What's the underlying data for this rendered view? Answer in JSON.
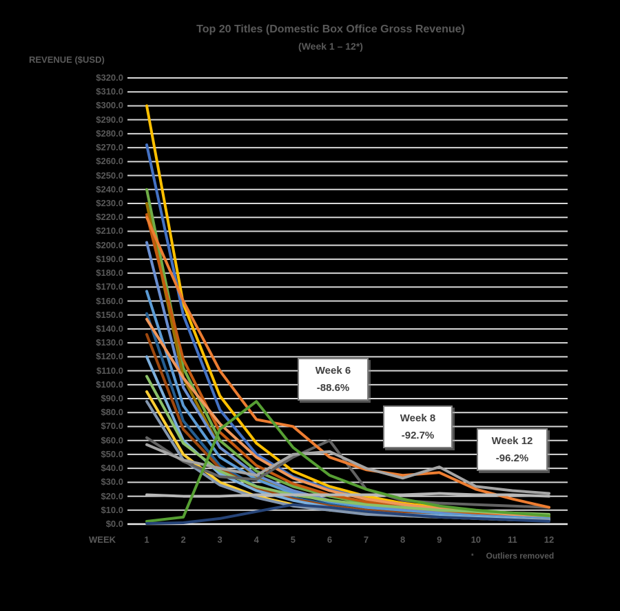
{
  "page": {
    "background": "#000000"
  },
  "chart_data": {
    "type": "line",
    "title": "Top 20 Titles (Domestic Box Office Gross Revenue)",
    "subtitle": "(Week 1 – 12*)",
    "ylabel": "REVENUE ($USD)",
    "xlabel": "WEEK",
    "ylim": [
      0,
      320
    ],
    "y_tick_step": 10,
    "grid": true,
    "legend": "none",
    "x": [
      1,
      2,
      3,
      4,
      5,
      6,
      7,
      8,
      9,
      10,
      11,
      12
    ],
    "x_tick_labels": [
      "1",
      "2",
      "3",
      "4",
      "5",
      "6",
      "7",
      "8",
      "9",
      "10",
      "11",
      "12"
    ],
    "y_tick_labels_top_down": [
      "$320.0",
      "$310.0",
      "$300.0",
      "$290.0",
      "$280.0",
      "$270.0",
      "$260.0",
      "$250.0",
      "$240.0",
      "$230.0",
      "$220.0",
      "$210.0",
      "$200.0",
      "$190.0",
      "$180.0",
      "$170.0",
      "$160.0",
      "$150.0",
      "$140.0",
      "$130.0",
      "$120.0",
      "$110.0",
      "$100.0",
      "$90.0",
      "$80.0",
      "$70.0",
      "$60.0",
      "$50.0",
      "$40.0",
      "$30.0",
      "$20.0",
      "$10.0",
      "$0.0"
    ],
    "series": [
      {
        "color": "#FFC000",
        "values": [
          300,
          158,
          92,
          58,
          38,
          27,
          20,
          15,
          12,
          9,
          7,
          6
        ]
      },
      {
        "color": "#4472C4",
        "values": [
          272,
          150,
          82,
          50,
          34,
          25,
          18,
          14,
          11,
          9,
          7,
          6
        ]
      },
      {
        "color": "#70AD47",
        "values": [
          240,
          112,
          60,
          38,
          27,
          20,
          15,
          12,
          9,
          7,
          6,
          5
        ]
      },
      {
        "color": "#997300",
        "values": [
          230,
          105,
          55,
          34,
          24,
          17,
          13,
          10,
          8,
          6,
          5,
          4
        ]
      },
      {
        "color": "#C55A11",
        "values": [
          222,
          118,
          66,
          42,
          29,
          21,
          16,
          12,
          9,
          7,
          6,
          5
        ]
      },
      {
        "color": "#698ED0",
        "values": [
          202,
          98,
          55,
          35,
          24,
          17,
          13,
          10,
          8,
          6,
          5,
          4
        ]
      },
      {
        "color": "#5B9BD5",
        "values": [
          167,
          85,
          48,
          32,
          22,
          16,
          12,
          9,
          7,
          6,
          5,
          4
        ]
      },
      {
        "color": "#255E91",
        "values": [
          151,
          74,
          42,
          27,
          19,
          14,
          10,
          8,
          6,
          5,
          4,
          3
        ]
      },
      {
        "color": "#F1975A",
        "values": [
          147,
          105,
          72,
          48,
          33,
          24,
          18,
          14,
          11,
          9,
          7,
          6
        ]
      },
      {
        "color": "#9E480E",
        "values": [
          136,
          68,
          40,
          26,
          18,
          13,
          10,
          8,
          6,
          5,
          4,
          3
        ]
      },
      {
        "color": "#7CAFDD",
        "values": [
          120,
          60,
          36,
          24,
          17,
          12,
          9,
          7,
          6,
          5,
          4,
          3
        ]
      },
      {
        "color": "#8CC168",
        "values": [
          106,
          58,
          38,
          27,
          21,
          17,
          14,
          12,
          10,
          9,
          8,
          7
        ]
      },
      {
        "color": "#FFCD33",
        "values": [
          95,
          50,
          30,
          20,
          14,
          10,
          8,
          6,
          5,
          4,
          3,
          3
        ]
      },
      {
        "color": "#8497B0",
        "values": [
          88,
          46,
          28,
          19,
          13,
          10,
          7,
          6,
          5,
          4,
          3,
          3
        ]
      },
      {
        "color": "#636363",
        "values": [
          62,
          45,
          34,
          32,
          48,
          60,
          25,
          17,
          15,
          14,
          13,
          12
        ]
      },
      {
        "color": "#ED7D31",
        "values": [
          220,
          160,
          110,
          75,
          70,
          48,
          39,
          35,
          37,
          25,
          18,
          12
        ]
      },
      {
        "color": "#A5A5A5",
        "values": [
          57,
          46,
          40,
          35,
          50,
          52,
          40,
          33,
          41,
          27,
          24,
          22
        ]
      },
      {
        "color": "#B7B7B7",
        "values": [
          21,
          20,
          20,
          21,
          21,
          21,
          21,
          21,
          22,
          21,
          21,
          20
        ]
      },
      {
        "color": "#569F33",
        "values": [
          2,
          5,
          68,
          88,
          55,
          35,
          25,
          18,
          13,
          10,
          8,
          6
        ]
      },
      {
        "color": "#264478",
        "values": [
          0.5,
          1,
          4,
          9,
          14,
          12,
          9,
          7,
          5,
          4,
          3,
          2
        ]
      }
    ],
    "annotations": [
      {
        "label": "Week 6",
        "delta": "-88.6%",
        "anchor_week": 6
      },
      {
        "label": "Week 8",
        "delta": "-92.7%",
        "anchor_week": 8
      },
      {
        "label": "Week 12",
        "delta": "-96.2%",
        "anchor_week": 12
      }
    ]
  },
  "footnote": {
    "marker": "*",
    "text": "Outliers removed"
  },
  "colors": {
    "grid": "#D8D8D8",
    "baseline": "#ECECEC",
    "axis_text": "#595959",
    "annotation_bg": "#FFFFFF",
    "annotation_border": "#7F7F7F",
    "annotation_text": "#404040"
  }
}
